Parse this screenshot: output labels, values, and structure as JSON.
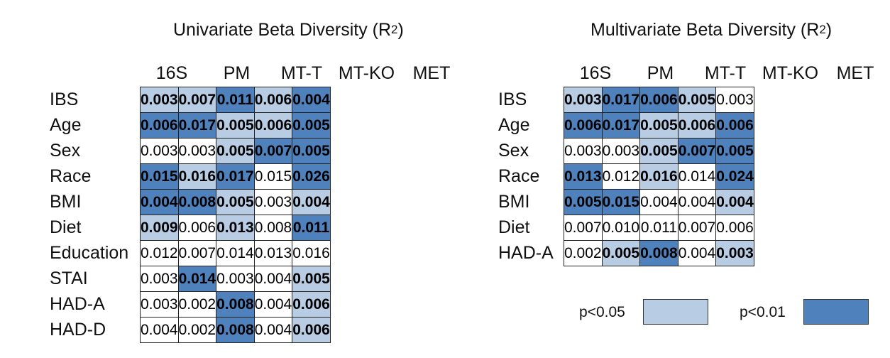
{
  "colors": {
    "p05": "#b8cce4",
    "p01": "#4f81bd",
    "none": "#ffffff"
  },
  "legend": {
    "p05_label": "p<0.05",
    "p01_label": "p<0.01"
  },
  "chart_data": [
    {
      "type": "table",
      "title": "Univariate Beta Diversity (R",
      "title_sup": "2",
      "title_suffix": ")",
      "columns": [
        "16S",
        "PM",
        "MT-T",
        "MT-KO",
        "MET"
      ],
      "rows": [
        "IBS",
        "Age",
        "Sex",
        "Race",
        "BMI",
        "Diet",
        "Education",
        "STAI",
        "HAD-A",
        "HAD-D"
      ],
      "values": [
        [
          "0.003",
          "0.007",
          "0.011",
          "0.006",
          "0.004"
        ],
        [
          "0.006",
          "0.017",
          "0.005",
          "0.006",
          "0.005"
        ],
        [
          "0.003",
          "0.003",
          "0.005",
          "0.007",
          "0.005"
        ],
        [
          "0.015",
          "0.016",
          "0.017",
          "0.015",
          "0.026"
        ],
        [
          "0.004",
          "0.008",
          "0.005",
          "0.003",
          "0.004"
        ],
        [
          "0.009",
          "0.006",
          "0.013",
          "0.008",
          "0.011"
        ],
        [
          "0.012",
          "0.007",
          "0.014",
          "0.013",
          "0.016"
        ],
        [
          "0.003",
          "0.014",
          "0.003",
          "0.004",
          "0.005"
        ],
        [
          "0.003",
          "0.002",
          "0.008",
          "0.004",
          "0.006"
        ],
        [
          "0.004",
          "0.002",
          "0.008",
          "0.004",
          "0.006"
        ]
      ],
      "significance": [
        [
          1,
          1,
          2,
          1,
          2
        ],
        [
          2,
          2,
          1,
          1,
          2
        ],
        [
          0,
          0,
          1,
          2,
          2
        ],
        [
          2,
          1,
          2,
          0,
          2
        ],
        [
          2,
          2,
          1,
          0,
          1
        ],
        [
          1,
          0,
          1,
          0,
          2
        ],
        [
          0,
          0,
          0,
          0,
          0
        ],
        [
          0,
          2,
          0,
          0,
          1
        ],
        [
          0,
          0,
          2,
          0,
          1
        ],
        [
          0,
          0,
          2,
          0,
          1
        ]
      ]
    },
    {
      "type": "table",
      "title": "Multivariate Beta Diversity (R",
      "title_sup": "2",
      "title_suffix": ")",
      "columns": [
        "16S",
        "PM",
        "MT-T",
        "MT-KO",
        "MET"
      ],
      "rows": [
        "IBS",
        "Age",
        "Sex",
        "Race",
        "BMI",
        "Diet",
        "HAD-A"
      ],
      "values": [
        [
          "0.003",
          "0.017",
          "0.006",
          "0.005",
          "0.003"
        ],
        [
          "0.006",
          "0.017",
          "0.005",
          "0.006",
          "0.006"
        ],
        [
          "0.003",
          "0.003",
          "0.005",
          "0.007",
          "0.005"
        ],
        [
          "0.013",
          "0.012",
          "0.016",
          "0.014",
          "0.024"
        ],
        [
          "0.005",
          "0.015",
          "0.004",
          "0.004",
          "0.004"
        ],
        [
          "0.007",
          "0.010",
          "0.011",
          "0.007",
          "0.006"
        ],
        [
          "0.002",
          "0.005",
          "0.008",
          "0.004",
          "0.003"
        ]
      ],
      "significance": [
        [
          1,
          2,
          2,
          1,
          0
        ],
        [
          2,
          2,
          1,
          1,
          2
        ],
        [
          0,
          0,
          1,
          2,
          2
        ],
        [
          2,
          0,
          1,
          0,
          2
        ],
        [
          2,
          2,
          0,
          0,
          1
        ],
        [
          0,
          0,
          0,
          0,
          0
        ],
        [
          0,
          1,
          2,
          0,
          1
        ]
      ]
    }
  ]
}
